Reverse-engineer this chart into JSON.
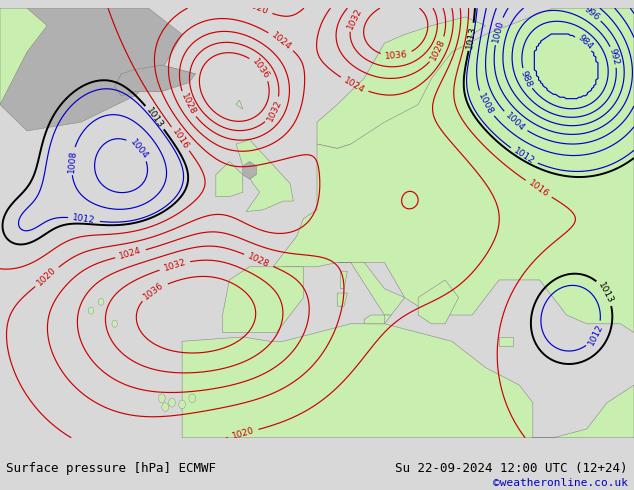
{
  "title_left": "Surface pressure [hPa] ECMWF",
  "title_right": "Su 22-09-2024 12:00 UTC (12+24)",
  "credit": "©weatheronline.co.uk",
  "bg_color": "#d8d8d8",
  "land_color": "#c8efb0",
  "gray_land_color": "#b0b0b0",
  "ocean_color": "#d8d8d8",
  "contour_color_red": "#cc0000",
  "contour_color_blue": "#0000cc",
  "contour_color_black": "#000000",
  "label_fontsize": 6.5,
  "footer_fontsize": 9,
  "credit_fontsize": 8,
  "credit_color": "#0000cc",
  "figsize": [
    6.34,
    4.9
  ],
  "dpi": 100
}
